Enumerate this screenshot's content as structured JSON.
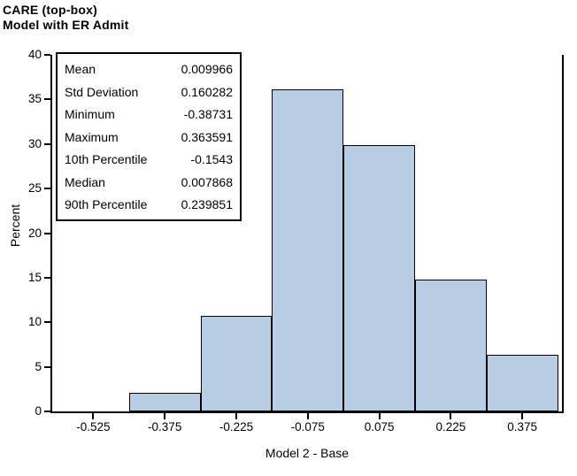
{
  "titles": {
    "line1": "CARE (top-box)",
    "line2": "Model with ER Admit"
  },
  "stats_box": {
    "rows": [
      {
        "label": "Mean",
        "value": "0.009966"
      },
      {
        "label": "Std Deviation",
        "value": "0.160282"
      },
      {
        "label": "Minimum",
        "value": "-0.38731"
      },
      {
        "label": "Maximum",
        "value": "0.363591"
      },
      {
        "label": "10th Percentile",
        "value": "-0.1543"
      },
      {
        "label": "Median",
        "value": "0.007868"
      },
      {
        "label": "90th Percentile",
        "value": "0.239851"
      }
    ]
  },
  "chart_data": {
    "type": "bar",
    "subtype": "histogram",
    "title": "CARE (top-box)",
    "subtitle": "Model with ER Admit",
    "categories": [
      "-0.525",
      "-0.375",
      "-0.225",
      "-0.075",
      "0.075",
      "0.225",
      "0.375"
    ],
    "values": [
      0,
      2.1,
      10.7,
      36.1,
      29.9,
      14.8,
      6.4
    ],
    "bin_width": 0.15,
    "xlabel": "Model 2 - Base",
    "ylabel": "Percent",
    "ylim": [
      0,
      40
    ],
    "yticks": [
      0,
      5,
      10,
      15,
      20,
      25,
      30,
      35,
      40
    ],
    "grid": false,
    "legend": false,
    "bar_fill": "#B8CCE4",
    "bar_border": "#000000",
    "axis_color": "#000000"
  }
}
